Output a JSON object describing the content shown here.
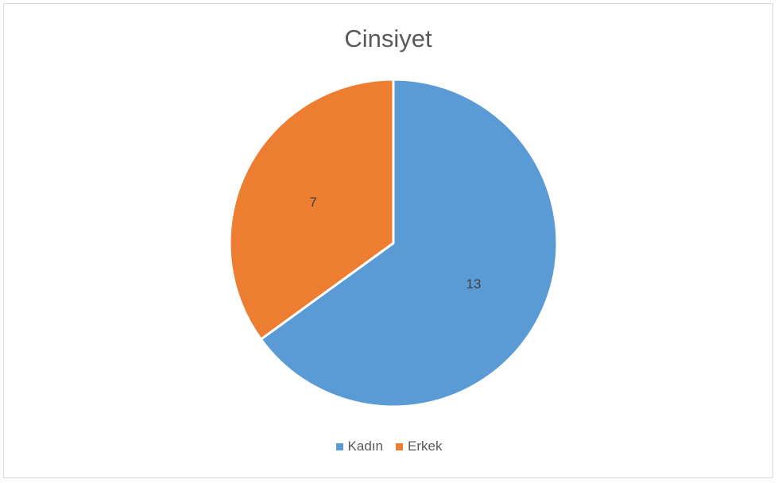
{
  "chart_data": {
    "type": "pie",
    "title": "Cinsiyet",
    "categories": [
      "Kadın",
      "Erkek"
    ],
    "values": [
      13,
      7
    ],
    "colors": [
      "#5b9bd5",
      "#ed7d31"
    ],
    "data_labels": [
      "13",
      "7"
    ],
    "legend_position": "bottom",
    "start_angle": "top, clockwise"
  }
}
